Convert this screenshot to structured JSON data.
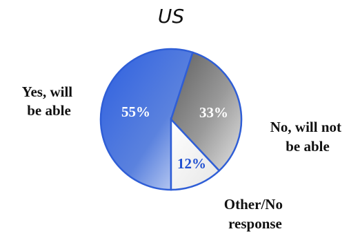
{
  "chart_data": {
    "type": "pie",
    "title": "US",
    "slices": [
      {
        "label": "Yes, will be able",
        "value": 55,
        "value_label": "55%",
        "color": "#3a66d8"
      },
      {
        "label": "No, will not be able",
        "value": 33,
        "value_label": "33%",
        "color": "#7a7a7a"
      },
      {
        "label": "Other/No response",
        "value": 12,
        "value_label": "12%",
        "color": "#f2f2f2"
      }
    ],
    "start_angle_deg": 0,
    "direction": "counterclockwise",
    "outline_color": "#2f5ed6",
    "label_colors": {
      "55%": "#ffffff",
      "33%": "#ffffff",
      "12%": "#1f4fd0"
    }
  }
}
